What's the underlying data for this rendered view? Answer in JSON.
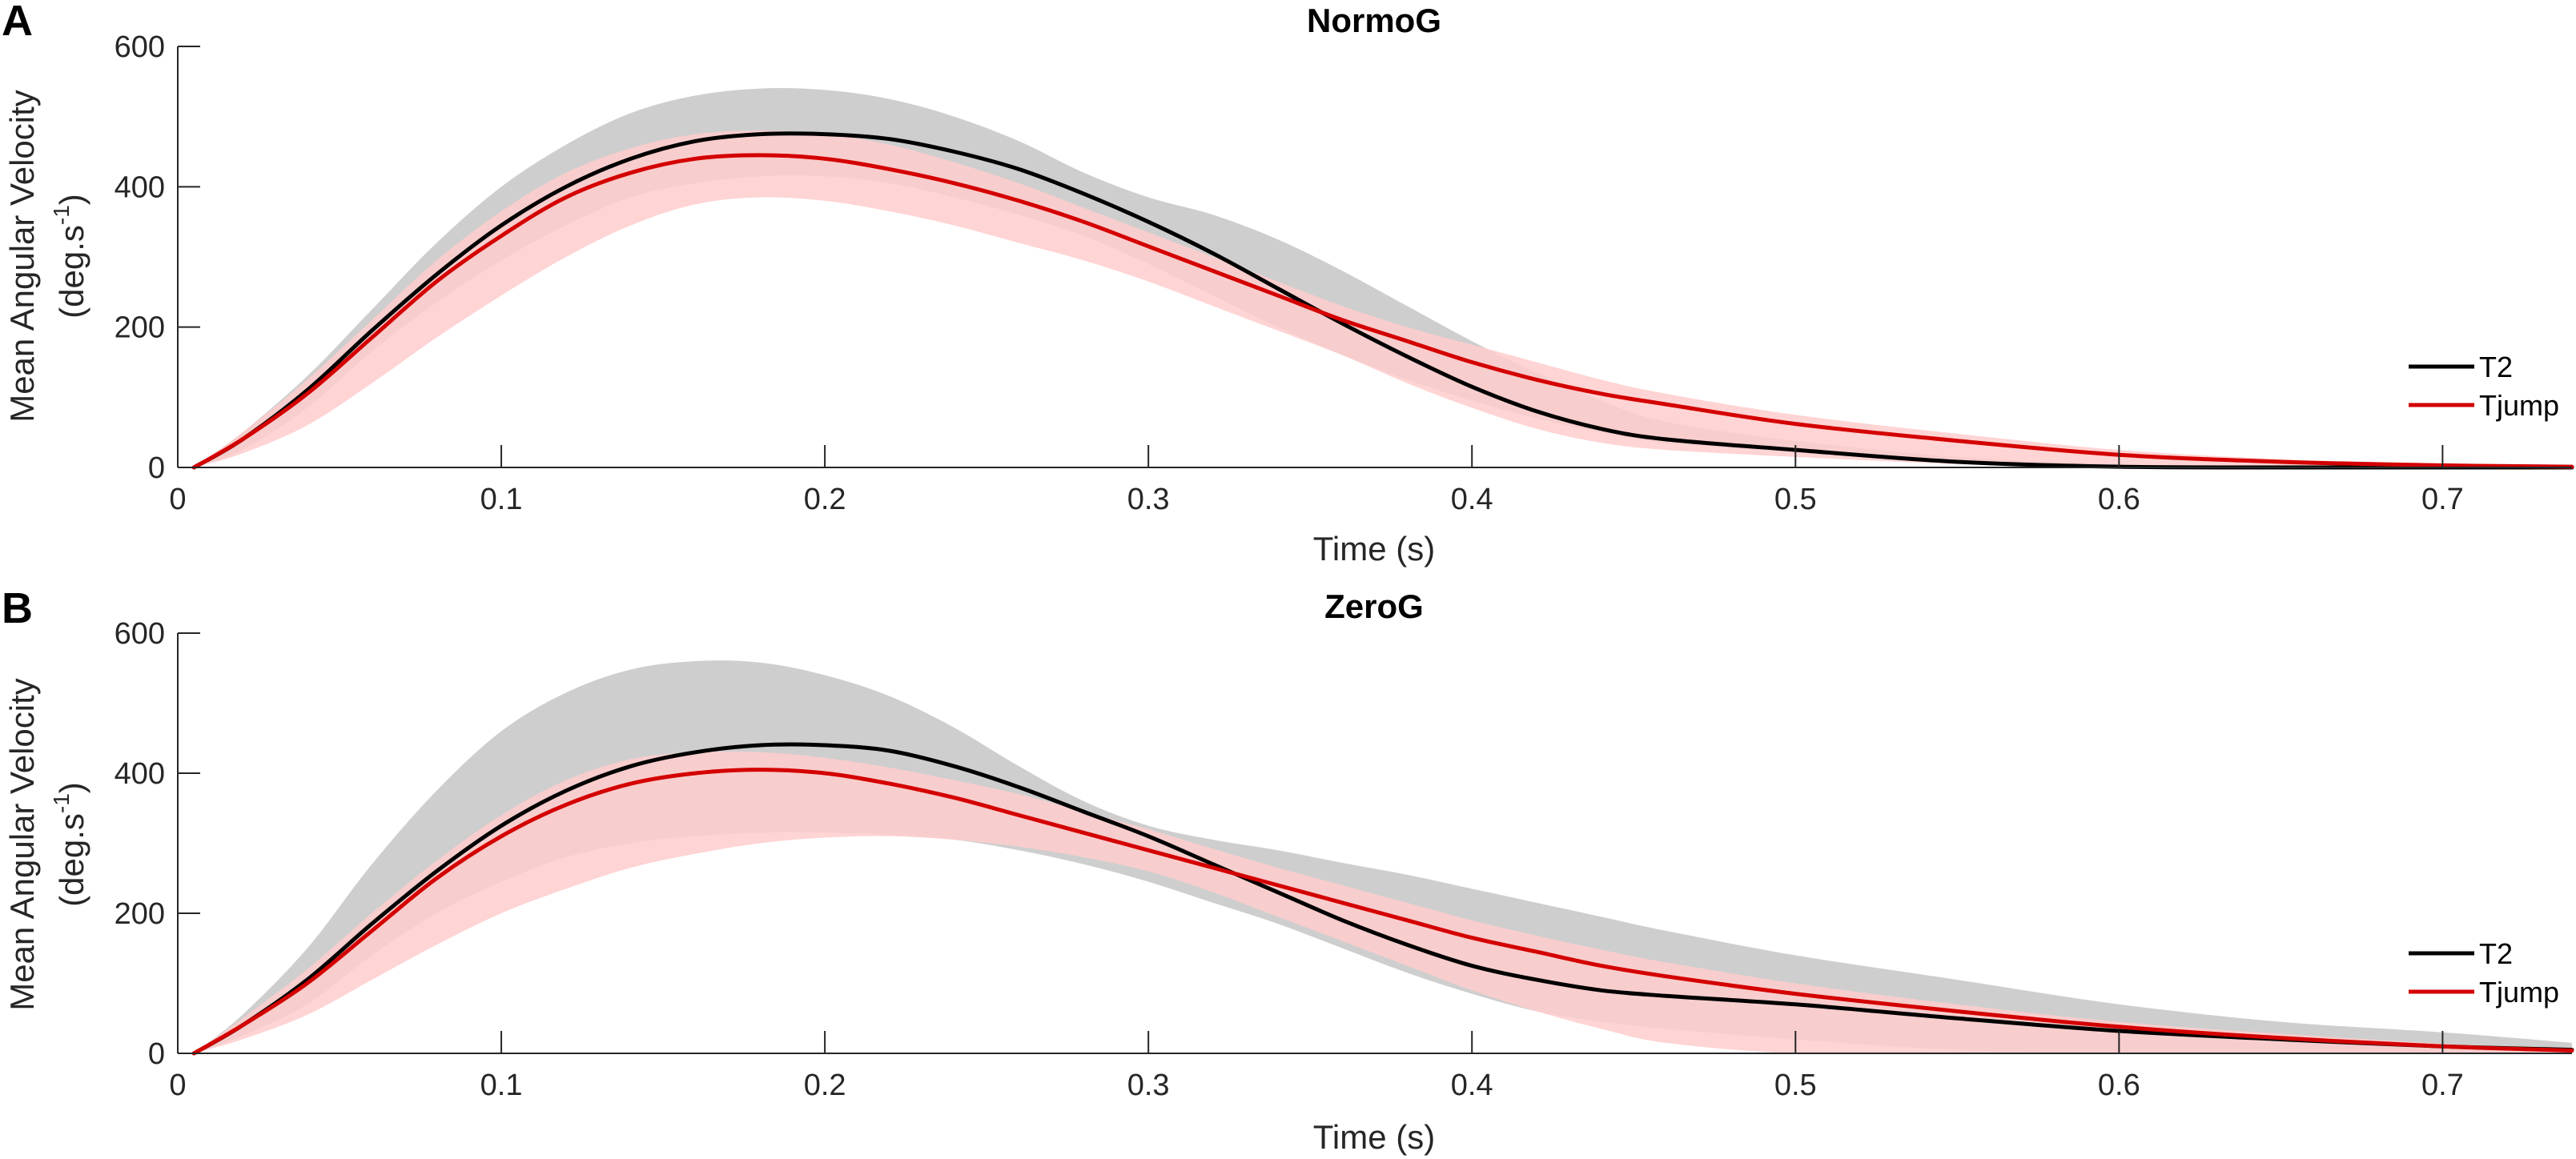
{
  "chart_data": [
    {
      "panel": "A",
      "type": "line",
      "title": "NormoG",
      "xlabel": "Time (s)",
      "ylabel_line1": "Mean Angular Velocity",
      "ylabel_line2_main": "(deg.s",
      "ylabel_line2_sup": "-1",
      "ylabel_line2_close": ")",
      "xlim": [
        0,
        0.74
      ],
      "ylim": [
        0,
        600
      ],
      "xticks": [
        0,
        0.1,
        0.2,
        0.3,
        0.4,
        0.5,
        0.6,
        0.7
      ],
      "xtick_labels": [
        "0",
        "0.1",
        "0.2",
        "0.3",
        "0.4",
        "0.5",
        "0.6",
        "0.7"
      ],
      "yticks": [
        0,
        200,
        400,
        600
      ],
      "ytick_labels": [
        "0",
        "200",
        "400",
        "600"
      ],
      "legend_position": "right",
      "legend": [
        "T2",
        "Tjump"
      ],
      "series": [
        {
          "name": "T2",
          "color": "#000000",
          "band_color": "#c6c6c6",
          "x": [
            0.005,
            0.02,
            0.04,
            0.06,
            0.08,
            0.1,
            0.12,
            0.14,
            0.16,
            0.18,
            0.2,
            0.22,
            0.24,
            0.26,
            0.28,
            0.3,
            0.32,
            0.34,
            0.36,
            0.38,
            0.4,
            0.42,
            0.44,
            0.46,
            0.5,
            0.55,
            0.6,
            0.65,
            0.7,
            0.74
          ],
          "values": [
            0,
            40,
            110,
            195,
            275,
            345,
            400,
            440,
            465,
            475,
            475,
            468,
            450,
            425,
            390,
            350,
            305,
            255,
            205,
            158,
            115,
            80,
            55,
            40,
            25,
            8,
            1,
            0,
            0,
            0
          ],
          "upper": [
            0,
            50,
            130,
            225,
            320,
            400,
            460,
            505,
            530,
            540,
            538,
            525,
            500,
            465,
            420,
            385,
            360,
            325,
            280,
            230,
            180,
            135,
            95,
            65,
            38,
            15,
            5,
            2,
            1,
            0
          ],
          "lower": [
            0,
            25,
            85,
            165,
            235,
            295,
            345,
            385,
            405,
            415,
            415,
            405,
            385,
            360,
            330,
            290,
            245,
            200,
            160,
            125,
            95,
            70,
            50,
            35,
            22,
            8,
            1,
            0,
            0,
            0
          ]
        },
        {
          "name": "Tjump",
          "color": "#d40000",
          "band_color": "#ffcccc",
          "x": [
            0.005,
            0.02,
            0.04,
            0.06,
            0.08,
            0.1,
            0.12,
            0.14,
            0.16,
            0.18,
            0.2,
            0.22,
            0.24,
            0.26,
            0.28,
            0.3,
            0.32,
            0.34,
            0.36,
            0.38,
            0.4,
            0.42,
            0.44,
            0.46,
            0.5,
            0.55,
            0.6,
            0.65,
            0.7,
            0.74
          ],
          "values": [
            0,
            40,
            105,
            185,
            265,
            330,
            385,
            420,
            440,
            445,
            440,
            425,
            405,
            380,
            350,
            315,
            280,
            245,
            210,
            180,
            150,
            125,
            105,
            90,
            62,
            38,
            18,
            8,
            3,
            1
          ],
          "upper": [
            0,
            50,
            125,
            210,
            295,
            365,
            420,
            455,
            475,
            480,
            475,
            460,
            435,
            405,
            370,
            335,
            300,
            265,
            230,
            200,
            175,
            150,
            125,
            105,
            75,
            48,
            25,
            12,
            5,
            2
          ],
          "lower": [
            0,
            20,
            60,
            120,
            185,
            245,
            300,
            345,
            375,
            385,
            380,
            365,
            345,
            320,
            295,
            265,
            230,
            195,
            160,
            120,
            85,
            55,
            35,
            25,
            15,
            5,
            1,
            0,
            0,
            0
          ]
        }
      ]
    },
    {
      "panel": "B",
      "type": "line",
      "title": "ZeroG",
      "xlabel": "Time (s)",
      "ylabel_line1": "Mean Angular Velocity",
      "ylabel_line2_main": "(deg.s",
      "ylabel_line2_sup": "-1",
      "ylabel_line2_close": ")",
      "xlim": [
        0,
        0.74
      ],
      "ylim": [
        0,
        600
      ],
      "xticks": [
        0,
        0.1,
        0.2,
        0.3,
        0.4,
        0.5,
        0.6,
        0.7
      ],
      "xtick_labels": [
        "0",
        "0.1",
        "0.2",
        "0.3",
        "0.4",
        "0.5",
        "0.6",
        "0.7"
      ],
      "yticks": [
        0,
        200,
        400,
        600
      ],
      "ytick_labels": [
        "0",
        "200",
        "400",
        "600"
      ],
      "legend_position": "right",
      "legend": [
        "T2",
        "Tjump"
      ],
      "series": [
        {
          "name": "T2",
          "color": "#000000",
          "band_color": "#c6c6c6",
          "x": [
            0.005,
            0.02,
            0.04,
            0.06,
            0.08,
            0.1,
            0.12,
            0.14,
            0.16,
            0.18,
            0.2,
            0.22,
            0.24,
            0.26,
            0.28,
            0.3,
            0.32,
            0.34,
            0.36,
            0.38,
            0.4,
            0.42,
            0.44,
            0.46,
            0.5,
            0.55,
            0.6,
            0.65,
            0.7,
            0.74
          ],
          "values": [
            0,
            40,
            105,
            185,
            260,
            325,
            375,
            410,
            430,
            440,
            440,
            432,
            410,
            380,
            345,
            310,
            270,
            230,
            190,
            155,
            125,
            105,
            90,
            82,
            70,
            50,
            32,
            20,
            10,
            5
          ],
          "upper": [
            0,
            55,
            150,
            270,
            375,
            460,
            515,
            548,
            560,
            558,
            540,
            510,
            465,
            410,
            360,
            325,
            305,
            290,
            272,
            255,
            235,
            215,
            195,
            175,
            140,
            105,
            70,
            45,
            30,
            15
          ],
          "lower": [
            0,
            25,
            70,
            140,
            200,
            245,
            280,
            300,
            310,
            315,
            315,
            312,
            305,
            290,
            270,
            245,
            215,
            185,
            150,
            115,
            85,
            60,
            45,
            35,
            20,
            5,
            0,
            0,
            0,
            0
          ]
        },
        {
          "name": "Tjump",
          "color": "#d40000",
          "band_color": "#ffcccc",
          "x": [
            0.005,
            0.02,
            0.04,
            0.06,
            0.08,
            0.1,
            0.12,
            0.14,
            0.16,
            0.18,
            0.2,
            0.22,
            0.24,
            0.26,
            0.28,
            0.3,
            0.32,
            0.34,
            0.36,
            0.38,
            0.4,
            0.42,
            0.44,
            0.46,
            0.5,
            0.55,
            0.6,
            0.65,
            0.7,
            0.74
          ],
          "values": [
            0,
            40,
            100,
            175,
            250,
            310,
            355,
            385,
            400,
            405,
            400,
            385,
            365,
            340,
            315,
            290,
            265,
            240,
            215,
            190,
            165,
            145,
            125,
            110,
            85,
            60,
            38,
            22,
            10,
            4
          ],
          "upper": [
            0,
            50,
            120,
            200,
            275,
            340,
            390,
            420,
            430,
            430,
            422,
            408,
            390,
            370,
            345,
            320,
            292,
            265,
            240,
            215,
            190,
            168,
            148,
            130,
            100,
            70,
            45,
            28,
            14,
            6
          ],
          "lower": [
            0,
            20,
            55,
            105,
            155,
            200,
            235,
            265,
            285,
            300,
            308,
            310,
            305,
            295,
            280,
            260,
            230,
            195,
            160,
            125,
            90,
            60,
            35,
            15,
            0,
            0,
            0,
            0,
            0,
            0
          ]
        }
      ]
    }
  ]
}
